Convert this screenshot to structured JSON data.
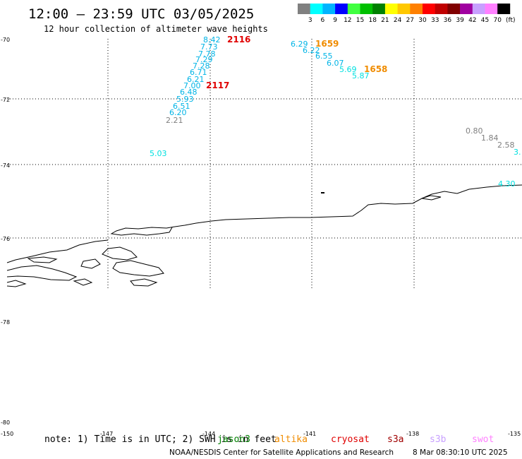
{
  "title": "12:00 – 23:59 UTC 03/05/2025",
  "subtitle": "12 hour collection of altimeter wave heights",
  "legend": {
    "unit": "(ft)",
    "labels": [
      "3",
      "6",
      "9",
      "12",
      "15",
      "18",
      "21",
      "24",
      "27",
      "30",
      "33",
      "36",
      "39",
      "42",
      "45",
      "70"
    ],
    "colors": [
      "#808080",
      "#00ffff",
      "#00b4ff",
      "#0000ff",
      "#40ff40",
      "#00c000",
      "#008000",
      "#ffff00",
      "#ffc800",
      "#ff8000",
      "#ff0000",
      "#c00000",
      "#800000",
      "#a000a0",
      "#c8a0ff",
      "#ff80ff",
      "#000000"
    ]
  },
  "lat_labels": [
    "-70",
    "-72",
    "-74",
    "-76",
    "-78",
    "-80"
  ],
  "lon_labels": [
    "-150",
    "-147",
    "-144",
    "-141",
    "-138",
    "-135"
  ],
  "track1": {
    "color": "#00b4e6",
    "values": [
      "8.42",
      "7.73",
      "7.78",
      "7.29",
      "7.28",
      "6.71",
      "6.21",
      "7.00",
      "6.48",
      "5.93",
      "6.51",
      "6.20"
    ],
    "end_value": "2.21",
    "end_color": "#808080",
    "times": [
      "2116",
      "2117"
    ],
    "time_color": "#e00000"
  },
  "track2": {
    "color": "#00b4e6",
    "values": [
      "6.29",
      "6.22",
      "6.55",
      "6.07"
    ],
    "values_cyan": [
      "5.69",
      "5.87"
    ],
    "cyan_color": "#00e0e0",
    "times": [
      "1659",
      "1658"
    ],
    "time_color": "#f08c00"
  },
  "track3": {
    "values_gray": [
      "0.80",
      "1.84",
      "2.58"
    ],
    "gray_color": "#808080",
    "value_partial": "3.",
    "value_last": "4.30",
    "cyan_color": "#00e0e0"
  },
  "isolated_value": "5.03",
  "note": "note: 1) Time is in UTC; 2) SWH is in feet",
  "satellites": [
    {
      "name": "jason3",
      "color": "#008000"
    },
    {
      "name": "altika",
      "color": "#f08c00"
    },
    {
      "name": "cryosat",
      "color": "#e00000"
    },
    {
      "name": "s3a",
      "color": "#a00000"
    },
    {
      "name": "s3b",
      "color": "#c8a0ff"
    },
    {
      "name": "swot",
      "color": "#ff80ff"
    }
  ],
  "footer_credit": "NOAA/NESDIS Center for Satellite Applications and Research",
  "footer_timestamp": "8 Mar 08:30:10 UTC 2025"
}
